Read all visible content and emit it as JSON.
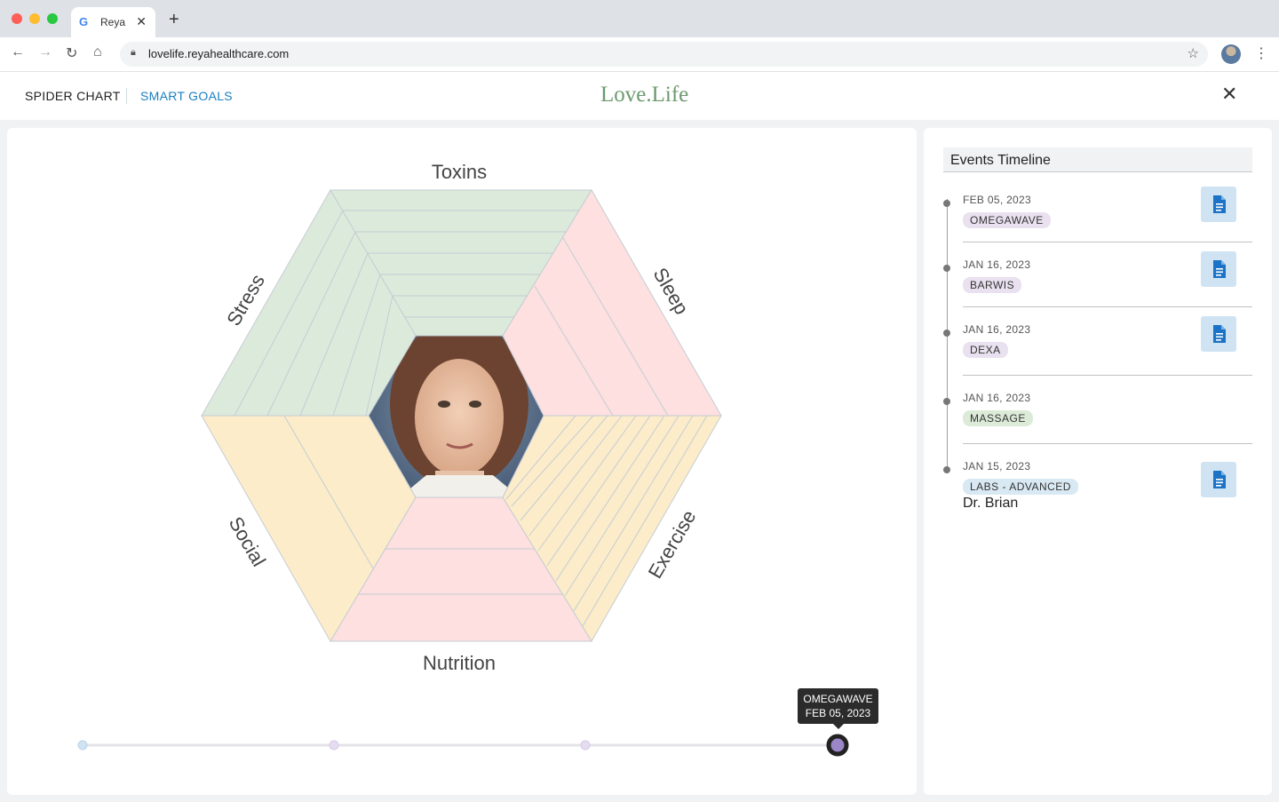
{
  "browser": {
    "tab_title": "Reya",
    "tab_favicon": "G",
    "url": "lovelife.reyahealthcare.com",
    "new_tab_label": "+",
    "tab_close_label": "✕"
  },
  "header": {
    "nav_left": "SPIDER CHART",
    "nav_right": "SMART GOALS",
    "logo": "Love.Life",
    "close_label": "✕"
  },
  "spider": {
    "labels": {
      "top": "Toxins",
      "upper_right": "Sleep",
      "lower_right": "Exercise",
      "bottom": "Nutrition",
      "lower_left": "Social",
      "upper_left": "Stress"
    },
    "segment_colors": {
      "green": "#dceadb",
      "pink": "#fde0df",
      "yellow": "#fcecc9"
    }
  },
  "slider": {
    "tooltip_line1": "OMEGAWAVE",
    "tooltip_line2": "FEB 05, 2023",
    "stops": 4,
    "selected_index": 3
  },
  "timeline": {
    "title": "Events Timeline",
    "events": [
      {
        "date": "FEB 05, 2023",
        "tag": "OMEGAWAVE",
        "tag_color": "#e9e1ef",
        "has_doc": true
      },
      {
        "date": "JAN 16, 2023",
        "tag": "BARWIS",
        "tag_color": "#e9e1ef",
        "has_doc": true
      },
      {
        "date": "JAN 16, 2023",
        "tag": "DEXA",
        "tag_color": "#e9e1ef",
        "has_doc": true
      },
      {
        "date": "JAN 16, 2023",
        "tag": "MASSAGE",
        "tag_color": "#dcebd8",
        "has_doc": false
      },
      {
        "date": "JAN 15, 2023",
        "tag": "LABS - ADVANCED",
        "tag_color": "#d9e9f3",
        "has_doc": true,
        "author": "Dr. Brian"
      }
    ]
  }
}
